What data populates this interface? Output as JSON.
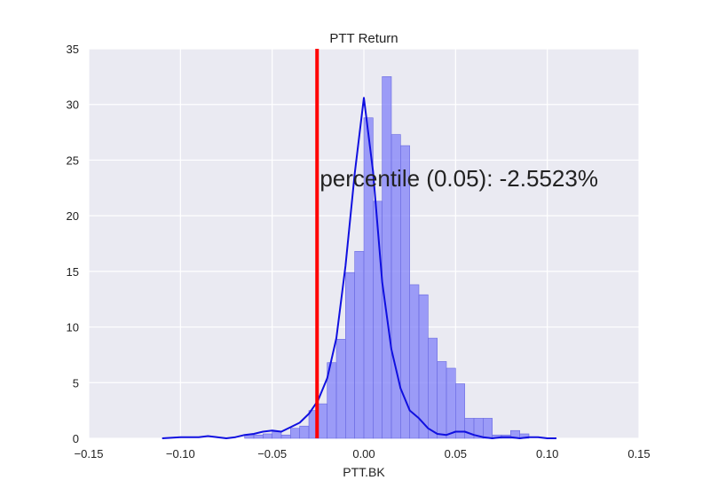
{
  "chart_data": {
    "type": "bar",
    "title": "PTT Return",
    "xlabel": "PTT.BK",
    "ylabel": "",
    "xlim": [
      -0.15,
      0.15
    ],
    "ylim": [
      0,
      35
    ],
    "xticks": [
      -0.15,
      -0.1,
      -0.05,
      0.0,
      0.05,
      0.1,
      0.15
    ],
    "xtick_labels": [
      "−0.15",
      "−0.10",
      "−0.05",
      "0.00",
      "0.05",
      "0.10",
      "0.15"
    ],
    "yticks": [
      0,
      5,
      10,
      15,
      20,
      25,
      30,
      35
    ],
    "ytick_labels": [
      "0",
      "5",
      "10",
      "15",
      "20",
      "25",
      "30",
      "35"
    ],
    "grid": true,
    "background": "#eaeaf2",
    "bar_color": "#8080f8",
    "kde_color": "#1010e0",
    "vline_color": "#ff0000",
    "histogram": {
      "bin_width": 0.005,
      "bins": [
        {
          "left": -0.065,
          "height": 0.3
        },
        {
          "left": -0.06,
          "height": 0.3
        },
        {
          "left": -0.055,
          "height": 0.4
        },
        {
          "left": -0.05,
          "height": 0.6
        },
        {
          "left": -0.045,
          "height": 0.3
        },
        {
          "left": -0.04,
          "height": 0.9
        },
        {
          "left": -0.035,
          "height": 1.1
        },
        {
          "left": -0.03,
          "height": 2.5
        },
        {
          "left": -0.025,
          "height": 3.1
        },
        {
          "left": -0.02,
          "height": 6.8
        },
        {
          "left": -0.015,
          "height": 8.9
        },
        {
          "left": -0.01,
          "height": 14.9
        },
        {
          "left": -0.005,
          "height": 16.8
        },
        {
          "left": 0.0,
          "height": 28.8
        },
        {
          "left": 0.005,
          "height": 21.3
        },
        {
          "left": 0.01,
          "height": 32.5
        },
        {
          "left": 0.015,
          "height": 27.3
        },
        {
          "left": 0.02,
          "height": 26.3
        },
        {
          "left": 0.025,
          "height": 13.8
        },
        {
          "left": 0.03,
          "height": 12.9
        },
        {
          "left": 0.035,
          "height": 9.0
        },
        {
          "left": 0.04,
          "height": 6.9
        },
        {
          "left": 0.045,
          "height": 6.3
        },
        {
          "left": 0.05,
          "height": 4.9
        },
        {
          "left": 0.055,
          "height": 1.8
        },
        {
          "left": 0.06,
          "height": 1.8
        },
        {
          "left": 0.065,
          "height": 1.8
        },
        {
          "left": 0.07,
          "height": 0.3
        },
        {
          "left": 0.075,
          "height": 0.3
        },
        {
          "left": 0.08,
          "height": 0.7
        },
        {
          "left": 0.085,
          "height": 0.4
        }
      ]
    },
    "kde": {
      "x": [
        -0.11,
        -0.1,
        -0.09,
        -0.085,
        -0.08,
        -0.075,
        -0.07,
        -0.065,
        -0.06,
        -0.055,
        -0.05,
        -0.045,
        -0.04,
        -0.035,
        -0.03,
        -0.025,
        -0.02,
        -0.015,
        -0.01,
        -0.005,
        0.0,
        0.005,
        0.01,
        0.015,
        0.02,
        0.025,
        0.03,
        0.035,
        0.04,
        0.045,
        0.05,
        0.055,
        0.06,
        0.065,
        0.07,
        0.075,
        0.08,
        0.085,
        0.09,
        0.095,
        0.1,
        0.105
      ],
      "y": [
        0.0,
        0.1,
        0.1,
        0.2,
        0.1,
        0.0,
        0.1,
        0.3,
        0.4,
        0.6,
        0.7,
        0.6,
        1.0,
        1.4,
        2.2,
        3.4,
        5.4,
        9.0,
        15.5,
        23.8,
        30.6,
        24.0,
        14.0,
        8.0,
        4.5,
        2.5,
        1.8,
        0.9,
        0.4,
        0.3,
        0.6,
        0.6,
        0.3,
        0.1,
        0.0,
        0.1,
        0.1,
        0.0,
        0.1,
        0.1,
        0.0,
        0.0
      ]
    },
    "vline": {
      "x": -0.025523
    },
    "annotation": {
      "text": "percentile (0.05): -2.5523%",
      "x": -0.025,
      "y": 22
    }
  }
}
